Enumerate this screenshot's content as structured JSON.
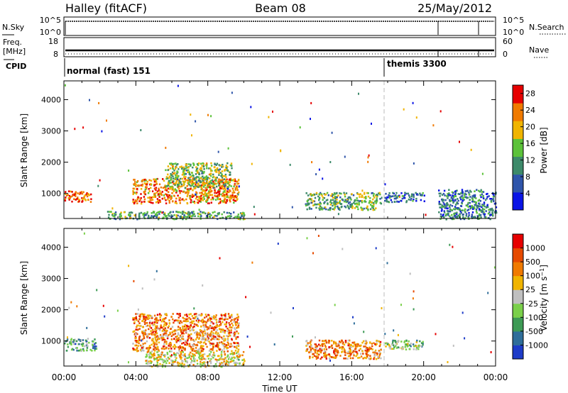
{
  "header": {
    "station": "Halley (fitACF)",
    "beam": "Beam 08",
    "date": "25/May/2012"
  },
  "top_panels": {
    "nsky_label": "N.Sky",
    "nsky_ticks": [
      "10^5",
      "10^0"
    ],
    "nsearch_label": "N.Search",
    "nsearch_ticks": [
      "10^5",
      "10^0"
    ],
    "freq_label_1": "Freq.",
    "freq_label_2": "[MHz]",
    "freq_ticks": [
      "18",
      "8"
    ],
    "nave_label": "Nave",
    "nave_ticks": [
      "60",
      "0"
    ],
    "cpid_label": "CPID",
    "cpid_segments": [
      {
        "label": "normal (fast) 151",
        "start_hour": 0
      },
      {
        "label": "themis 3300",
        "start_hour": 18.1
      }
    ]
  },
  "chart_data": [
    {
      "type": "heatmap",
      "title": "",
      "xlabel": "",
      "ylabel": "Slant Range [km]",
      "xlim": [
        0,
        24
      ],
      "ylim": [
        200,
        4600
      ],
      "x_ticks": [
        "00:00",
        "04:00",
        "08:00",
        "12:00",
        "16:00",
        "20:00",
        "00:00"
      ],
      "y_ticks": [
        1000,
        2000,
        3000,
        4000
      ],
      "colorbar_label": "Power [dB]",
      "colorbar_ticks": [
        "4",
        "8",
        "12",
        "16",
        "20",
        "24",
        "28"
      ],
      "colorbar_range": [
        0,
        30
      ],
      "colorbar_colors": [
        "#0a14e6",
        "#2f55aa",
        "#3d8a6a",
        "#5cc23a",
        "#f0b400",
        "#f07a00",
        "#e60000"
      ],
      "regions": [
        {
          "x": [
            3.8,
            9.7
          ],
          "y": [
            700,
            1500
          ],
          "level": 0.75
        },
        {
          "x": [
            5.6,
            9.3
          ],
          "y": [
            1200,
            2000
          ],
          "level": 0.5
        },
        {
          "x": [
            0.0,
            1.5
          ],
          "y": [
            750,
            1100
          ],
          "level": 0.8
        },
        {
          "x": [
            13.4,
            17.6
          ],
          "y": [
            500,
            1050
          ],
          "level": 0.45
        },
        {
          "x": [
            17.8,
            20.0
          ],
          "y": [
            750,
            1050
          ],
          "level": 0.25
        },
        {
          "x": [
            2.4,
            10.0
          ],
          "y": [
            200,
            450
          ],
          "level": 0.4
        },
        {
          "x": [
            20.8,
            24.0
          ],
          "y": [
            200,
            1150
          ],
          "level": 0.3
        }
      ]
    },
    {
      "type": "heatmap",
      "title": "",
      "xlabel": "Time UT",
      "ylabel": "Slant Range [km]",
      "xlim": [
        0,
        24
      ],
      "ylim": [
        200,
        4600
      ],
      "x_ticks": [
        "00:00",
        "04:00",
        "08:00",
        "12:00",
        "16:00",
        "20:00",
        "00:00"
      ],
      "y_ticks": [
        1000,
        2000,
        3000,
        4000
      ],
      "colorbar_label": "Velocity [m s^-1]",
      "colorbar_ticks": [
        "1000",
        "500",
        "100",
        "25",
        "-25",
        "-100",
        "-500",
        "-1000"
      ],
      "colorbar_colors": [
        "#1e3cc8",
        "#2f6e9a",
        "#3d9a55",
        "#7ad04a",
        "#bfbfbf",
        "#f0b400",
        "#f07a00",
        "#e64a00",
        "#e60000"
      ],
      "regions": [
        {
          "x": [
            3.8,
            9.7
          ],
          "y": [
            700,
            1900
          ],
          "level": 0.72
        },
        {
          "x": [
            0.0,
            1.8
          ],
          "y": [
            700,
            1100
          ],
          "level": 0.3
        },
        {
          "x": [
            13.4,
            17.6
          ],
          "y": [
            450,
            1050
          ],
          "level": 0.7
        },
        {
          "x": [
            17.8,
            20.0
          ],
          "y": [
            750,
            1050
          ],
          "level": 0.4
        },
        {
          "x": [
            4.5,
            10.0
          ],
          "y": [
            200,
            700
          ],
          "level": 0.55
        }
      ]
    }
  ]
}
